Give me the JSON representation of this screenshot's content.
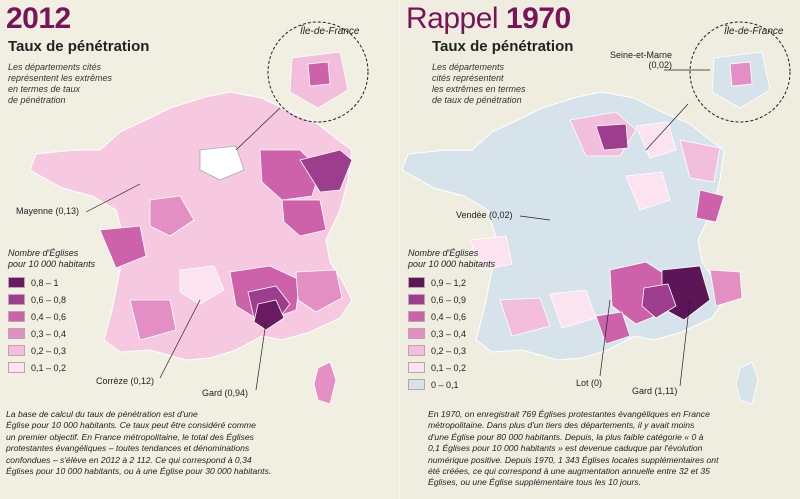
{
  "left": {
    "year": "2012",
    "subtitle": "Taux de pénétration",
    "note": [
      "Les départements cités",
      "représentent les extrêmes",
      "en termes de taux",
      "de pénétration"
    ],
    "inset_label": "Île-de-France",
    "legend_title": [
      "Nombre d'Églises",
      "pour 10 000 habitants"
    ],
    "legend": [
      {
        "label": "0,8 – 1",
        "color": "#6a1a60"
      },
      {
        "label": "0,6 – 0,8",
        "color": "#9c3d8e"
      },
      {
        "label": "0,4 – 0,6",
        "color": "#cd62aa"
      },
      {
        "label": "0,3 – 0,4",
        "color": "#e38fc3"
      },
      {
        "label": "0,2 – 0,3",
        "color": "#f2bedb"
      },
      {
        "label": "0,1 – 0,2",
        "color": "#fbe3ef"
      }
    ],
    "callouts": {
      "mayenne": "Mayenne (0,13)",
      "correze": "Corrèze (0,12)",
      "gard": "Gard (0,94)"
    },
    "text": [
      "La base de calcul du taux de pénétration est d'une",
      "Église pour 10 000 habitants. Ce taux peut être considéré comme",
      "un premier objectif. En France métropolitaine, le total des Églises",
      "protestantes évangéliques – toutes tendances et dénominations",
      "confondues – s'élève en 2012 à 2 112. Ce qui correspond à 0,34",
      "Églises pour 10 000 habitants, ou à une Église pour 30 000 habitants."
    ]
  },
  "right": {
    "rappel": "Rappel",
    "year": "1970",
    "subtitle": "Taux de pénétration",
    "note": [
      "Les départements",
      "cités représentent",
      "les extrêmes en termes",
      "de taux de pénétration"
    ],
    "inset_label": "Île-de-France",
    "legend_title": [
      "Nombre d'Églises",
      "pour 10 000 habitants"
    ],
    "legend": [
      {
        "label": "0,9 – 1,2",
        "color": "#5c1556"
      },
      {
        "label": "0,6 – 0,9",
        "color": "#9c3d8e"
      },
      {
        "label": "0,4 – 0,6",
        "color": "#cd62aa"
      },
      {
        "label": "0,3 – 0,4",
        "color": "#e38fc3"
      },
      {
        "label": "0,2 – 0,3",
        "color": "#f2bedb"
      },
      {
        "label": "0,1 – 0,2",
        "color": "#fbe3ef"
      },
      {
        "label": "0 – 0,1",
        "color": "#d7e3ea"
      }
    ],
    "callouts": {
      "seine_et_marne": "Seine-et-Marne",
      "seine_et_marne_val": "(0,02)",
      "vendee": "Vendée (0,02)",
      "lot": "Lot (0)",
      "gard": "Gard (1,11)"
    },
    "text": [
      "En 1970, on enregistrait 769 Églises protestantes évangéliques en France",
      "métropolitaine. Dans plus d'un tiers des départements, il y avait moins",
      "d'une Église pour 80 000 habitants. Depuis, la plus faible catégorie « 0 à",
      "0,1 Églises pour 10 000 habitants » est devenue caduque par l'évolution",
      "numérique positive. Depuis 1970, 1 343 Églises locales supplémentaires ont",
      "été créées, ce qui correspond à une augmentation annuelle entre 32 et 35",
      "Églises, ou une Église supplémentaire tous les 10 jours."
    ]
  }
}
